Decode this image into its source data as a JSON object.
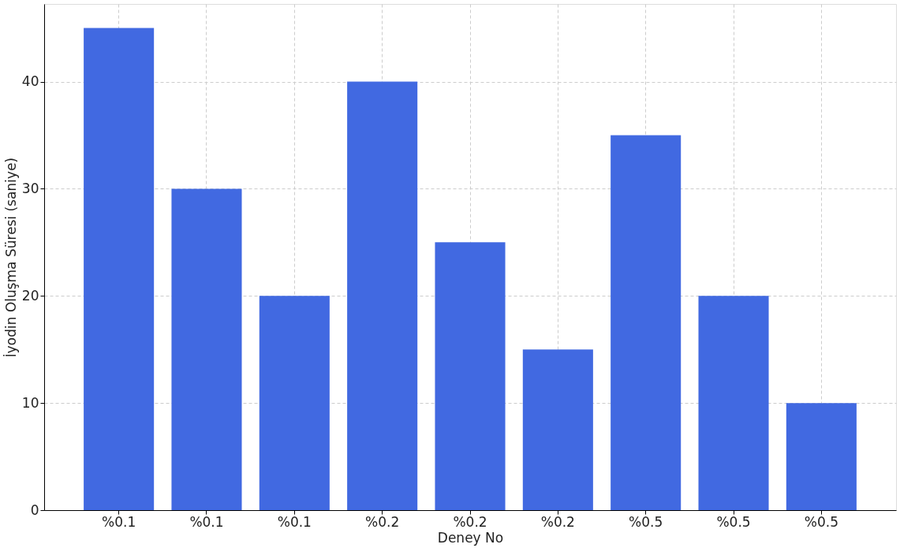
{
  "chart_data": {
    "type": "bar",
    "xlabel": "Deney No",
    "ylabel": "İyodin Oluşma Süresi (saniye)",
    "categories": [
      "%0.1",
      "%0.1",
      "%0.1",
      "%0.2",
      "%0.2",
      "%0.2",
      "%0.5",
      "%0.5",
      "%0.5"
    ],
    "values": [
      45,
      30,
      20,
      40,
      25,
      15,
      35,
      20,
      10
    ],
    "color": "#4169e1",
    "ylim": [
      0,
      47.25
    ],
    "yticks": [
      0,
      10,
      20,
      30,
      40
    ],
    "grid": true
  }
}
